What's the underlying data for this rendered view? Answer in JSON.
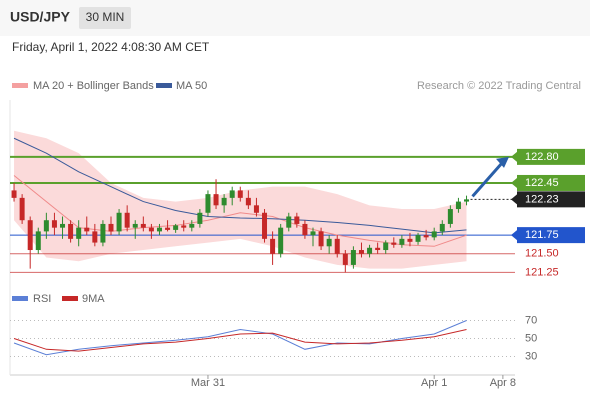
{
  "header": {
    "pair": "USD/JPY",
    "interval": "30 MIN",
    "date": "Friday, April 1, 2022 4:08:30 AM CET"
  },
  "chart_data": [
    {
      "type": "candlestick",
      "legend": [
        "MA 20 + Bollinger Bands",
        "MA 50"
      ],
      "credit": "Research © 2022 Trading Central",
      "ylim": [
        121.0,
        123.55
      ],
      "xlim": [
        -0.5,
        62
      ],
      "xticks": [
        {
          "value": 24,
          "label": "Mar 31"
        },
        {
          "value": 52,
          "label": "Apr 1"
        },
        {
          "value": 60.5,
          "label": "Apr 8"
        }
      ],
      "up_color": "#2e8b2e",
      "down_color": "#c62828",
      "candles": [
        [
          122.35,
          122.45,
          122.2,
          122.25
        ],
        [
          122.25,
          122.3,
          121.9,
          121.95
        ],
        [
          121.95,
          122.0,
          121.3,
          121.55
        ],
        [
          121.55,
          121.85,
          121.5,
          121.8
        ],
        [
          121.8,
          122.05,
          121.7,
          121.95
        ],
        [
          121.95,
          122.05,
          121.75,
          121.85
        ],
        [
          121.85,
          122.0,
          121.7,
          121.9
        ],
        [
          121.9,
          121.95,
          121.65,
          121.7
        ],
        [
          121.7,
          121.95,
          121.6,
          121.85
        ],
        [
          121.85,
          122.0,
          121.75,
          121.8
        ],
        [
          121.8,
          121.9,
          121.6,
          121.65
        ],
        [
          121.65,
          121.95,
          121.6,
          121.9
        ],
        [
          121.9,
          122.0,
          121.75,
          121.8
        ],
        [
          121.8,
          122.1,
          121.75,
          122.05
        ],
        [
          122.05,
          122.15,
          121.8,
          121.85
        ],
        [
          121.85,
          121.95,
          121.7,
          121.9
        ],
        [
          121.9,
          122.0,
          121.8,
          121.85
        ],
        [
          121.85,
          121.9,
          121.7,
          121.8
        ],
        [
          121.8,
          121.9,
          121.75,
          121.85
        ],
        [
          121.85,
          121.95,
          121.8,
          121.82
        ],
        [
          121.82,
          121.9,
          121.78,
          121.88
        ],
        [
          121.88,
          121.95,
          121.8,
          121.85
        ],
        [
          121.85,
          121.95,
          121.8,
          121.9
        ],
        [
          121.9,
          122.1,
          121.85,
          122.05
        ],
        [
          122.05,
          122.35,
          122.0,
          122.3
        ],
        [
          122.3,
          122.5,
          122.1,
          122.15
        ],
        [
          122.15,
          122.3,
          122.05,
          122.25
        ],
        [
          122.25,
          122.4,
          122.15,
          122.35
        ],
        [
          122.35,
          122.4,
          122.2,
          122.25
        ],
        [
          122.25,
          122.35,
          122.1,
          122.15
        ],
        [
          122.15,
          122.25,
          122.0,
          122.05
        ],
        [
          122.05,
          122.1,
          121.65,
          121.7
        ],
        [
          121.7,
          121.8,
          121.35,
          121.5
        ],
        [
          121.5,
          121.9,
          121.45,
          121.85
        ],
        [
          121.85,
          122.05,
          121.8,
          122.0
        ],
        [
          122.0,
          122.05,
          121.85,
          121.9
        ],
        [
          121.9,
          121.95,
          121.7,
          121.75
        ],
        [
          121.75,
          121.85,
          121.6,
          121.8
        ],
        [
          121.8,
          121.85,
          121.55,
          121.6
        ],
        [
          121.6,
          121.75,
          121.5,
          121.7
        ],
        [
          121.7,
          121.75,
          121.45,
          121.5
        ],
        [
          121.5,
          121.55,
          121.25,
          121.35
        ],
        [
          121.35,
          121.6,
          121.3,
          121.55
        ],
        [
          121.55,
          121.65,
          121.45,
          121.5
        ],
        [
          121.5,
          121.62,
          121.45,
          121.58
        ],
        [
          121.58,
          121.65,
          121.5,
          121.55
        ],
        [
          121.55,
          121.68,
          121.5,
          121.65
        ],
        [
          121.65,
          121.72,
          121.58,
          121.62
        ],
        [
          121.62,
          121.75,
          121.58,
          121.7
        ],
        [
          121.7,
          121.78,
          121.6,
          121.66
        ],
        [
          121.66,
          121.78,
          121.62,
          121.75
        ],
        [
          121.75,
          121.82,
          121.68,
          121.72
        ],
        [
          121.72,
          121.85,
          121.68,
          121.8
        ],
        [
          121.8,
          121.95,
          121.75,
          121.9
        ],
        [
          121.9,
          122.15,
          121.85,
          122.1
        ],
        [
          122.1,
          122.25,
          122.05,
          122.2
        ],
        [
          122.2,
          122.28,
          122.15,
          122.23
        ]
      ],
      "x": [
        0,
        4,
        8,
        12,
        16,
        20,
        24,
        28,
        32,
        36,
        40,
        44,
        48,
        52,
        56
      ],
      "bands": {
        "color": "#fbdada",
        "upper": [
          123.15,
          123.05,
          122.85,
          122.45,
          122.25,
          122.2,
          122.25,
          122.35,
          122.4,
          122.4,
          122.3,
          122.15,
          122.1,
          122.1,
          122.2
        ],
        "lower": [
          121.95,
          121.45,
          121.4,
          121.5,
          121.55,
          121.6,
          121.65,
          121.7,
          121.6,
          121.45,
          121.35,
          121.3,
          121.3,
          121.35,
          121.4
        ]
      },
      "series": [
        {
          "name": "MA 20",
          "color": "#f08a8a",
          "values": [
            122.55,
            122.2,
            121.85,
            121.8,
            121.85,
            121.88,
            121.95,
            122.05,
            122.0,
            121.85,
            121.75,
            121.68,
            121.62,
            121.6,
            121.75
          ]
        },
        {
          "name": "MA 50",
          "color": "#3a5a9a",
          "values": [
            123.05,
            122.85,
            122.6,
            122.4,
            122.2,
            122.08,
            122.0,
            121.98,
            121.97,
            121.95,
            121.92,
            121.88,
            121.83,
            121.78,
            121.82
          ]
        }
      ],
      "levels": [
        122.8,
        122.45,
        122.23,
        121.75,
        121.5,
        121.25
      ],
      "level_labels": [
        "122.80",
        "122.45",
        "122.23",
        "121.75",
        "121.50",
        "121.25"
      ],
      "level_colors": [
        "#5aa02c",
        "#5aa02c",
        "#222222",
        "#2255cc",
        "#c62828",
        "#c62828"
      ]
    },
    {
      "type": "line",
      "ylim": [
        15,
        75
      ],
      "yticks": [
        70,
        50,
        30
      ],
      "x": [
        0,
        4,
        8,
        12,
        16,
        20,
        24,
        28,
        32,
        36,
        40,
        44,
        48,
        52,
        56
      ],
      "series": [
        {
          "name": "RSI",
          "color": "#5b7fd6",
          "values": [
            45,
            32,
            38,
            42,
            45,
            48,
            52,
            60,
            55,
            38,
            45,
            44,
            50,
            55,
            70
          ]
        },
        {
          "name": "9MA",
          "color": "#c62828",
          "values": [
            50,
            38,
            36,
            40,
            44,
            46,
            50,
            55,
            56,
            46,
            44,
            45,
            48,
            52,
            60
          ]
        }
      ]
    }
  ]
}
